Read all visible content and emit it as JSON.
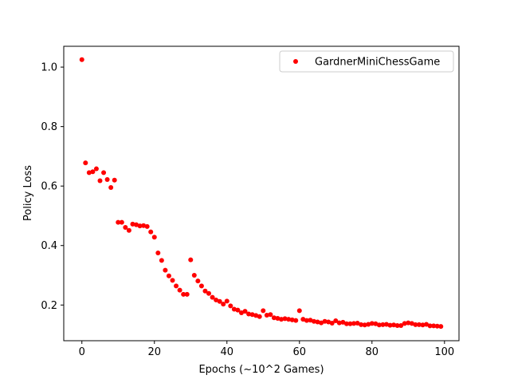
{
  "chart_data": {
    "type": "scatter",
    "title": "",
    "xlabel": "Epochs (~10^2 Games)",
    "ylabel": "Policy Loss",
    "xlim": [
      -5,
      104
    ],
    "ylim": [
      0.08,
      1.07
    ],
    "xticks": [
      0,
      20,
      40,
      60,
      80,
      100
    ],
    "yticks": [
      0.2,
      0.4,
      0.6,
      0.8,
      1.0
    ],
    "xtick_labels": [
      "0",
      "20",
      "40",
      "60",
      "80",
      "100"
    ],
    "ytick_labels": [
      "0.2",
      "0.4",
      "0.6",
      "0.8",
      "1.0"
    ],
    "grid": false,
    "legend_position": "top-right",
    "series": [
      {
        "name": "GardnerMiniChessGame",
        "color": "#ff0000",
        "points": [
          [
            0,
            1.025
          ],
          [
            1,
            0.678
          ],
          [
            2,
            0.645
          ],
          [
            3,
            0.648
          ],
          [
            4,
            0.658
          ],
          [
            5,
            0.618
          ],
          [
            6,
            0.645
          ],
          [
            7,
            0.622
          ],
          [
            8,
            0.595
          ],
          [
            9,
            0.62
          ],
          [
            10,
            0.478
          ],
          [
            11,
            0.478
          ],
          [
            12,
            0.461
          ],
          [
            13,
            0.451
          ],
          [
            14,
            0.472
          ],
          [
            15,
            0.47
          ],
          [
            16,
            0.466
          ],
          [
            17,
            0.467
          ],
          [
            18,
            0.464
          ],
          [
            19,
            0.446
          ],
          [
            20,
            0.428
          ],
          [
            21,
            0.375
          ],
          [
            22,
            0.35
          ],
          [
            23,
            0.317
          ],
          [
            24,
            0.298
          ],
          [
            25,
            0.283
          ],
          [
            26,
            0.264
          ],
          [
            27,
            0.25
          ],
          [
            28,
            0.236
          ],
          [
            29,
            0.236
          ],
          [
            30,
            0.352
          ],
          [
            31,
            0.3
          ],
          [
            32,
            0.281
          ],
          [
            33,
            0.264
          ],
          [
            34,
            0.247
          ],
          [
            35,
            0.239
          ],
          [
            36,
            0.226
          ],
          [
            37,
            0.217
          ],
          [
            38,
            0.212
          ],
          [
            39,
            0.203
          ],
          [
            40,
            0.213
          ],
          [
            41,
            0.197
          ],
          [
            42,
            0.186
          ],
          [
            43,
            0.183
          ],
          [
            44,
            0.174
          ],
          [
            45,
            0.179
          ],
          [
            46,
            0.17
          ],
          [
            47,
            0.168
          ],
          [
            48,
            0.165
          ],
          [
            49,
            0.161
          ],
          [
            50,
            0.181
          ],
          [
            51,
            0.166
          ],
          [
            52,
            0.168
          ],
          [
            53,
            0.157
          ],
          [
            54,
            0.155
          ],
          [
            55,
            0.152
          ],
          [
            56,
            0.154
          ],
          [
            57,
            0.152
          ],
          [
            58,
            0.15
          ],
          [
            59,
            0.148
          ],
          [
            60,
            0.181
          ],
          [
            61,
            0.152
          ],
          [
            62,
            0.148
          ],
          [
            63,
            0.149
          ],
          [
            64,
            0.145
          ],
          [
            65,
            0.143
          ],
          [
            66,
            0.14
          ],
          [
            67,
            0.145
          ],
          [
            68,
            0.143
          ],
          [
            69,
            0.139
          ],
          [
            70,
            0.147
          ],
          [
            71,
            0.14
          ],
          [
            72,
            0.142
          ],
          [
            73,
            0.137
          ],
          [
            74,
            0.137
          ],
          [
            75,
            0.138
          ],
          [
            76,
            0.139
          ],
          [
            77,
            0.134
          ],
          [
            78,
            0.133
          ],
          [
            79,
            0.135
          ],
          [
            80,
            0.138
          ],
          [
            81,
            0.137
          ],
          [
            82,
            0.133
          ],
          [
            83,
            0.134
          ],
          [
            84,
            0.135
          ],
          [
            85,
            0.132
          ],
          [
            86,
            0.133
          ],
          [
            87,
            0.131
          ],
          [
            88,
            0.131
          ],
          [
            89,
            0.138
          ],
          [
            90,
            0.14
          ],
          [
            91,
            0.138
          ],
          [
            92,
            0.134
          ],
          [
            93,
            0.134
          ],
          [
            94,
            0.133
          ],
          [
            95,
            0.135
          ],
          [
            96,
            0.13
          ],
          [
            97,
            0.13
          ],
          [
            98,
            0.129
          ],
          [
            99,
            0.128
          ]
        ]
      }
    ]
  }
}
